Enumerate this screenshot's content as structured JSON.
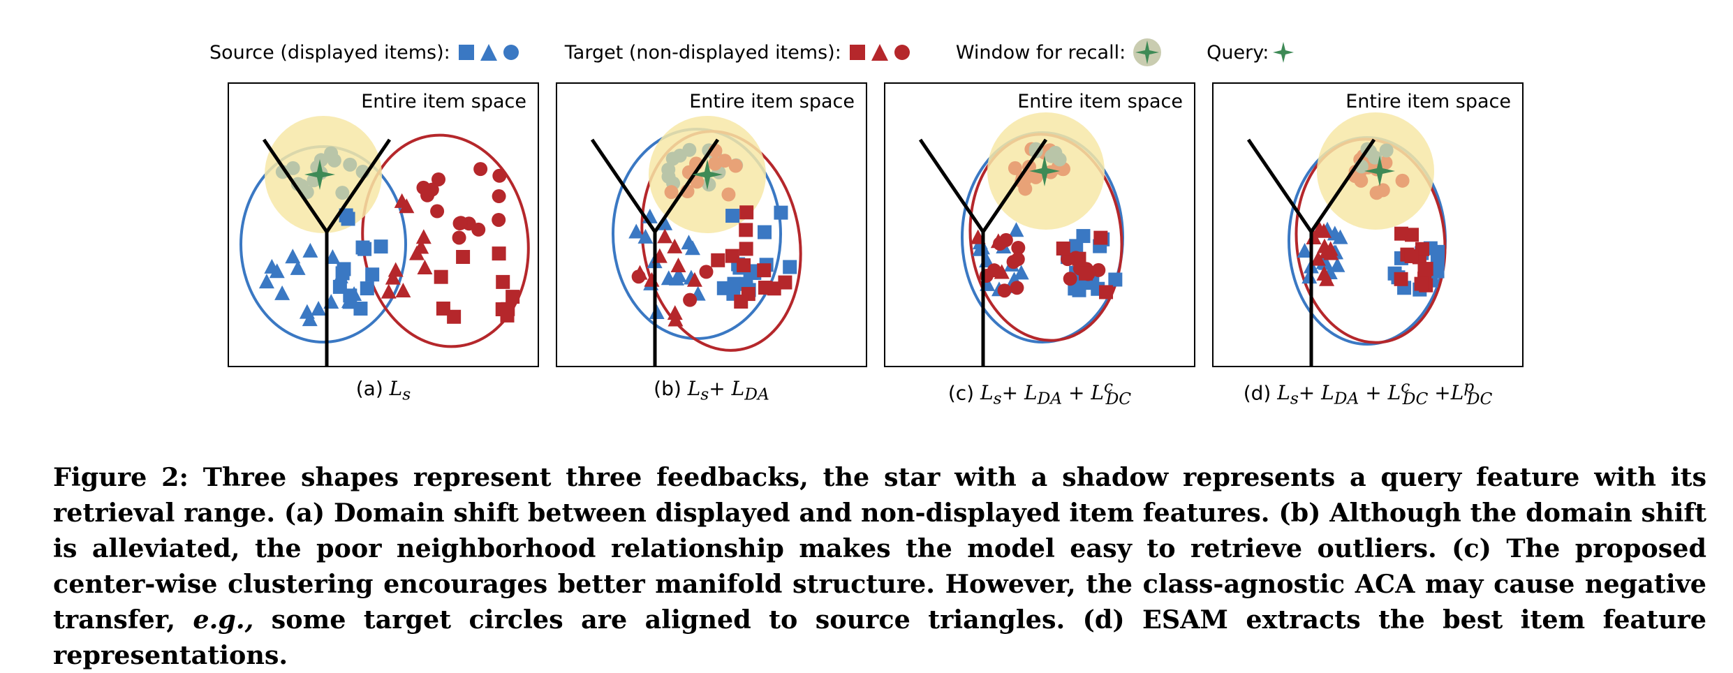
{
  "legend": {
    "source_label": "Source (displayed items):",
    "target_label": "Target (non-displayed items):",
    "window_label": "Window for recall:",
    "query_label": "Query:"
  },
  "colors": {
    "source": "#3a78c3",
    "target": "#b5272b",
    "target_aligned": "#e8a277",
    "source_neighbor": "#b9c5a8",
    "window": "#f7e7a7",
    "query": "#3e8a56"
  },
  "panels": [
    {
      "space_label": "Entire item space",
      "caption_prefix": "(a) ",
      "caption_math": "L_s"
    },
    {
      "space_label": "Entire item space",
      "caption_prefix": "(b) ",
      "caption_math": "L_s+ L_DA"
    },
    {
      "space_label": "Entire item space",
      "caption_prefix": "(c) ",
      "caption_math": "L_s+ L_DA + L^c_DC"
    },
    {
      "space_label": "Entire item space",
      "caption_prefix": "(d) ",
      "caption_math": "L_s+ L_DA + L^c_DC +L^p_DC"
    }
  ],
  "caption": {
    "part1": "Figure 2: Three shapes represent three feedbacks, the star with a shadow represents a query feature with its retrieval range. (a) Domain shift between displayed and non-displayed item features. (b) Although the domain shift is alleviated, the poor neighborhood relationship makes the model easy to retrieve outliers. (c) The proposed center-wise clustering encourages better manifold structure. However, the class-agnostic ACA may cause negative transfer, ",
    "eg": "e.g.,",
    "part2": " some target circles are aligned to source triangles. (d) ESAM extracts the best item feature representations."
  }
}
